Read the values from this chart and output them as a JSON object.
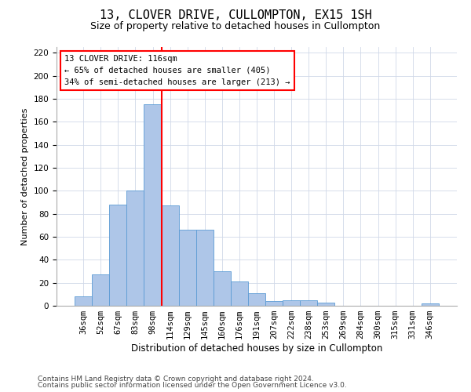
{
  "title": "13, CLOVER DRIVE, CULLOMPTON, EX15 1SH",
  "subtitle": "Size of property relative to detached houses in Cullompton",
  "xlabel": "Distribution of detached houses by size in Cullompton",
  "ylabel": "Number of detached properties",
  "categories": [
    "36sqm",
    "52sqm",
    "67sqm",
    "83sqm",
    "98sqm",
    "114sqm",
    "129sqm",
    "145sqm",
    "160sqm",
    "176sqm",
    "191sqm",
    "207sqm",
    "222sqm",
    "238sqm",
    "253sqm",
    "269sqm",
    "284sqm",
    "300sqm",
    "315sqm",
    "331sqm",
    "346sqm"
  ],
  "values": [
    8,
    27,
    88,
    100,
    175,
    87,
    66,
    66,
    30,
    21,
    11,
    4,
    5,
    5,
    3,
    0,
    0,
    0,
    0,
    0,
    2
  ],
  "bar_color": "#aec6e8",
  "bar_edge_color": "#5b9bd5",
  "vline_color": "red",
  "annotation_text": "13 CLOVER DRIVE: 116sqm\n← 65% of detached houses are smaller (405)\n34% of semi-detached houses are larger (213) →",
  "annotation_box_color": "white",
  "annotation_box_edge": "red",
  "ylim": [
    0,
    225
  ],
  "yticks": [
    0,
    20,
    40,
    60,
    80,
    100,
    120,
    140,
    160,
    180,
    200,
    220
  ],
  "footer1": "Contains HM Land Registry data © Crown copyright and database right 2024.",
  "footer2": "Contains public sector information licensed under the Open Government Licence v3.0.",
  "bg_color": "#ffffff",
  "grid_color": "#d0d8e8",
  "title_fontsize": 11,
  "subtitle_fontsize": 9,
  "xlabel_fontsize": 8.5,
  "ylabel_fontsize": 8,
  "tick_fontsize": 7.5,
  "footer_fontsize": 6.5,
  "annotation_fontsize": 7.5
}
